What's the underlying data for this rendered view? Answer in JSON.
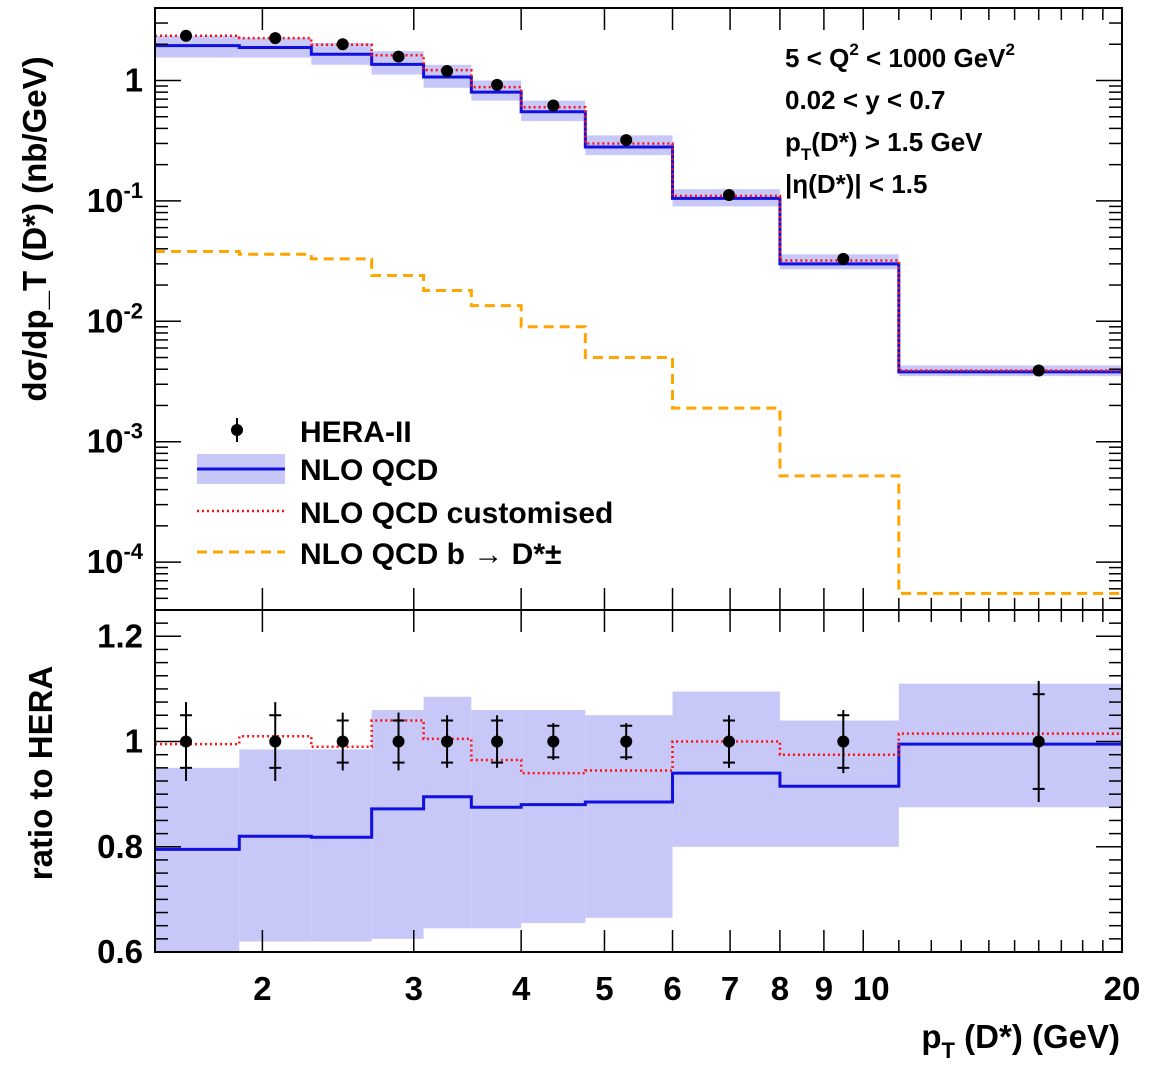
{
  "chart_data": [
    {
      "type": "step",
      "panel": "top",
      "ylabel": "dσ/dp_T (D*) (nb/GeV)",
      "yscale": "log",
      "ylim": [
        4e-05,
        4.0
      ],
      "ytick_labels": [
        {
          "value": 1,
          "text": "1"
        },
        {
          "value": 0.1,
          "base": "10",
          "exp": "-1"
        },
        {
          "value": 0.01,
          "base": "10",
          "exp": "-2"
        },
        {
          "value": 0.001,
          "base": "10",
          "exp": "-3"
        },
        {
          "value": 0.0001,
          "base": "10",
          "exp": "-4"
        }
      ],
      "bin_edges": [
        1.5,
        1.88,
        2.28,
        2.68,
        3.08,
        3.5,
        4.0,
        4.75,
        6.0,
        8.0,
        11.0,
        20.0
      ],
      "data_points": {
        "x": [
          1.63,
          2.07,
          2.48,
          2.88,
          3.28,
          3.75,
          4.36,
          5.3,
          6.98,
          9.48,
          16.0
        ],
        "y": [
          2.35,
          2.25,
          2.0,
          1.58,
          1.2,
          0.92,
          0.62,
          0.32,
          0.112,
          0.033,
          0.0039
        ]
      },
      "nlo_central": [
        1.95,
        1.88,
        1.65,
        1.36,
        1.07,
        0.8,
        0.55,
        0.28,
        0.105,
        0.03,
        0.0038
      ],
      "nlo_band_low": [
        1.55,
        1.55,
        1.35,
        1.12,
        0.87,
        0.68,
        0.46,
        0.24,
        0.09,
        0.027,
        0.0035
      ],
      "nlo_band_high": [
        2.35,
        2.25,
        2.05,
        1.75,
        1.35,
        1.0,
        0.68,
        0.35,
        0.125,
        0.036,
        0.0043
      ],
      "nlo_customised": [
        2.35,
        2.25,
        1.98,
        1.62,
        1.22,
        0.88,
        0.6,
        0.3,
        0.11,
        0.032,
        0.0039
      ],
      "nlo_b": [
        0.038,
        0.036,
        0.033,
        0.024,
        0.018,
        0.0135,
        0.009,
        0.005,
        0.0019,
        0.00052,
        5.5e-05
      ],
      "legend": [
        {
          "label": "HERA-II",
          "style": "marker"
        },
        {
          "label": "NLO QCD",
          "style": "band-line"
        },
        {
          "label": "NLO QCD customised",
          "style": "dotted"
        },
        {
          "label": "NLO QCD b  → D*±",
          "style": "dashed"
        }
      ],
      "legend_position": "bottom-left",
      "annotations": [
        {
          "text": "5 < Q",
          "sup": "2",
          "mid": " < 1000 GeV",
          "sup2": "2"
        },
        {
          "text": "0.02 < y < 0.7"
        },
        {
          "text": "p",
          "sub": "T",
          "rest": "(D*) > 1.5 GeV"
        },
        {
          "text": "|η(D*)| < 1.5"
        }
      ],
      "annotation_position": "top-right"
    },
    {
      "type": "step",
      "panel": "bottom",
      "ylabel": "ratio to HERA",
      "ylim": [
        0.6,
        1.25
      ],
      "ytick_labels": [
        "0.6",
        "0.8",
        "1",
        "1.2"
      ],
      "bin_edges": [
        1.5,
        1.88,
        2.28,
        2.68,
        3.08,
        3.5,
        4.0,
        4.75,
        6.0,
        8.0,
        11.0,
        20.0
      ],
      "data_points": {
        "x": [
          1.63,
          2.07,
          2.48,
          2.88,
          3.28,
          3.75,
          4.36,
          5.3,
          6.98,
          9.48,
          16.0
        ],
        "y": [
          1.0,
          1.0,
          1.0,
          1.0,
          1.0,
          1.0,
          1.0,
          1.0,
          1.0,
          1.0,
          1.0
        ],
        "err_inner": [
          0.05,
          0.05,
          0.04,
          0.04,
          0.04,
          0.04,
          0.03,
          0.03,
          0.04,
          0.05,
          0.09
        ],
        "err_total": [
          0.075,
          0.075,
          0.055,
          0.055,
          0.05,
          0.05,
          0.035,
          0.035,
          0.05,
          0.06,
          0.115
        ]
      },
      "nlo_central": [
        0.795,
        0.82,
        0.818,
        0.872,
        0.895,
        0.875,
        0.88,
        0.885,
        0.94,
        0.915,
        0.995
      ],
      "nlo_band_low": [
        0.6,
        0.62,
        0.62,
        0.625,
        0.645,
        0.645,
        0.655,
        0.665,
        0.8,
        0.8,
        0.875
      ],
      "nlo_band_high": [
        0.95,
        0.985,
        0.985,
        1.06,
        1.085,
        1.06,
        1.06,
        1.05,
        1.095,
        1.04,
        1.11
      ],
      "nlo_customised": [
        0.995,
        1.01,
        0.99,
        1.04,
        1.005,
        0.965,
        0.94,
        0.945,
        1.0,
        0.975,
        1.015
      ]
    }
  ],
  "x_axis": {
    "label_main": "p",
    "label_sub": "T",
    "label_rest": " (D*) (GeV)",
    "scale": "log",
    "range": [
      1.5,
      20
    ],
    "tick_labels": [
      {
        "value": 2,
        "text": "2"
      },
      {
        "value": 3,
        "text": "3"
      },
      {
        "value": 4,
        "text": "4"
      },
      {
        "value": 5,
        "text": "5"
      },
      {
        "value": 6,
        "text": "6"
      },
      {
        "value": 7,
        "text": "7"
      },
      {
        "value": 8,
        "text": "8"
      },
      {
        "value": 9,
        "text": "9"
      },
      {
        "value": 10,
        "text": "10"
      },
      {
        "value": 20,
        "text": "20"
      }
    ]
  },
  "colors": {
    "nlo_line": "#1010e0",
    "nlo_band": "#c8c8f8",
    "customised": "#ff1010",
    "b_contribution": "#ffa500",
    "data": "#000000"
  }
}
